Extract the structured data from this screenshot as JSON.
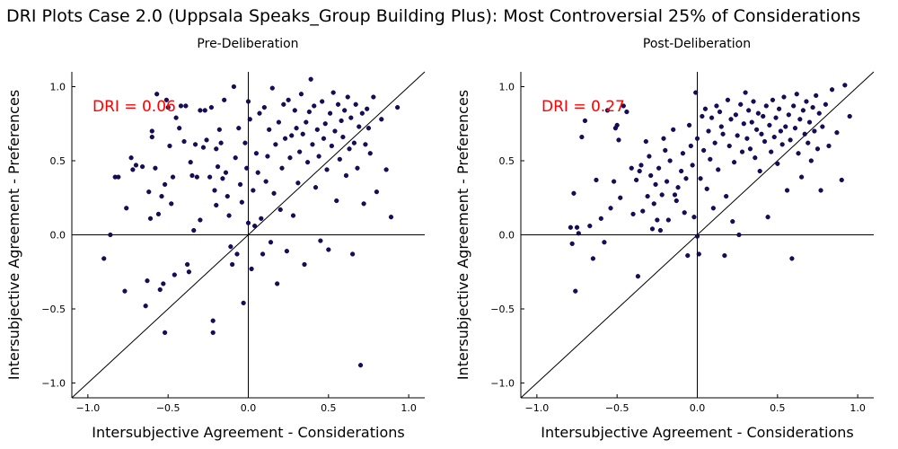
{
  "title": "DRI Plots Case 2.0 (Uppsala Speaks_Group Building Plus): Most Controversial 25% of Considerations",
  "colors": {
    "point": "#1a0a5c",
    "annotation": "#ff0000",
    "axis": "#000000"
  },
  "chart_data": [
    {
      "type": "scatter",
      "title": "Pre-Deliberation",
      "xlabel": "Intersubjective Agreement - Considerations",
      "ylabel": "Intersubjective Agreement - Preferences",
      "xlim": [
        -1.1,
        1.1
      ],
      "ylim": [
        -1.1,
        1.1
      ],
      "xticks": [
        "−1.0",
        "−0.5",
        "0.0",
        "0.5",
        "1.0"
      ],
      "yticks": [
        "−1.0",
        "−0.5",
        "0.0",
        "0.5",
        "1.0"
      ],
      "annotation": "DRI = 0.06",
      "points": [
        [
          -0.9,
          -0.16
        ],
        [
          -0.86,
          0.0
        ],
        [
          -0.83,
          0.39
        ],
        [
          -0.81,
          0.39
        ],
        [
          -0.77,
          -0.38
        ],
        [
          -0.76,
          0.18
        ],
        [
          -0.73,
          0.52
        ],
        [
          -0.72,
          0.44
        ],
        [
          -0.7,
          0.47
        ],
        [
          -0.66,
          0.46
        ],
        [
          -0.64,
          -0.48
        ],
        [
          -0.63,
          -0.31
        ],
        [
          -0.62,
          0.29
        ],
        [
          -0.61,
          0.11
        ],
        [
          -0.6,
          0.7
        ],
        [
          -0.6,
          0.66
        ],
        [
          -0.58,
          0.45
        ],
        [
          -0.57,
          0.95
        ],
        [
          -0.56,
          0.14
        ],
        [
          -0.55,
          -0.37
        ],
        [
          -0.54,
          0.26
        ],
        [
          -0.53,
          -0.33
        ],
        [
          -0.52,
          -0.66
        ],
        [
          -0.52,
          0.34
        ],
        [
          -0.51,
          0.91
        ],
        [
          -0.5,
          0.86
        ],
        [
          -0.49,
          0.6
        ],
        [
          -0.48,
          0.21
        ],
        [
          -0.47,
          0.39
        ],
        [
          -0.46,
          -0.27
        ],
        [
          -0.45,
          0.79
        ],
        [
          -0.43,
          0.72
        ],
        [
          -0.42,
          0.87
        ],
        [
          -0.4,
          0.63
        ],
        [
          -0.39,
          0.87
        ],
        [
          -0.38,
          -0.2
        ],
        [
          -0.37,
          -0.25
        ],
        [
          -0.36,
          0.49
        ],
        [
          -0.35,
          0.4
        ],
        [
          -0.34,
          0.03
        ],
        [
          -0.33,
          0.61
        ],
        [
          -0.32,
          0.39
        ],
        [
          -0.3,
          0.84
        ],
        [
          -0.3,
          0.1
        ],
        [
          -0.28,
          0.59
        ],
        [
          -0.27,
          0.84
        ],
        [
          -0.26,
          0.64
        ],
        [
          -0.24,
          0.39
        ],
        [
          -0.23,
          0.86
        ],
        [
          -0.22,
          -0.58
        ],
        [
          -0.22,
          -0.66
        ],
        [
          -0.21,
          0.3
        ],
        [
          -0.2,
          0.58
        ],
        [
          -0.2,
          0.2
        ],
        [
          -0.19,
          0.46
        ],
        [
          -0.18,
          0.71
        ],
        [
          -0.17,
          0.62
        ],
        [
          -0.16,
          0.38
        ],
        [
          -0.15,
          0.91
        ],
        [
          -0.14,
          0.42
        ],
        [
          -0.13,
          0.26
        ],
        [
          -0.12,
          0.13
        ],
        [
          -0.11,
          -0.08
        ],
        [
          -0.1,
          -0.2
        ],
        [
          -0.09,
          1.0
        ],
        [
          -0.08,
          0.52
        ],
        [
          -0.07,
          -0.13
        ],
        [
          -0.06,
          0.72
        ],
        [
          -0.05,
          0.34
        ],
        [
          -0.04,
          0.22
        ],
        [
          -0.03,
          -0.46
        ],
        [
          -0.02,
          0.62
        ],
        [
          -0.01,
          0.45
        ],
        [
          0.0,
          0.08
        ],
        [
          0.0,
          0.9
        ],
        [
          0.01,
          0.78
        ],
        [
          0.02,
          -0.23
        ],
        [
          0.03,
          0.3
        ],
        [
          0.04,
          0.06
        ],
        [
          0.05,
          0.55
        ],
        [
          0.06,
          0.42
        ],
        [
          0.07,
          0.82
        ],
        [
          0.08,
          0.11
        ],
        [
          0.09,
          -0.13
        ],
        [
          0.1,
          0.86
        ],
        [
          0.11,
          0.36
        ],
        [
          0.12,
          0.53
        ],
        [
          0.13,
          0.71
        ],
        [
          0.14,
          -0.05
        ],
        [
          0.15,
          0.99
        ],
        [
          0.16,
          0.28
        ],
        [
          0.17,
          0.61
        ],
        [
          0.18,
          -0.33
        ],
        [
          0.19,
          0.76
        ],
        [
          0.2,
          0.17
        ],
        [
          0.21,
          0.45
        ],
        [
          0.22,
          0.88
        ],
        [
          0.23,
          0.65
        ],
        [
          0.24,
          -0.11
        ],
        [
          0.25,
          0.91
        ],
        [
          0.26,
          0.52
        ],
        [
          0.27,
          0.67
        ],
        [
          0.28,
          0.13
        ],
        [
          0.29,
          0.84
        ],
        [
          0.3,
          0.72
        ],
        [
          0.31,
          0.35
        ],
        [
          0.32,
          0.56
        ],
        [
          0.33,
          0.95
        ],
        [
          0.34,
          0.68
        ],
        [
          0.35,
          -0.2
        ],
        [
          0.36,
          0.76
        ],
        [
          0.37,
          0.49
        ],
        [
          0.38,
          0.83
        ],
        [
          0.39,
          1.05
        ],
        [
          0.4,
          0.61
        ],
        [
          0.41,
          0.87
        ],
        [
          0.42,
          0.32
        ],
        [
          0.43,
          0.71
        ],
        [
          0.44,
          0.53
        ],
        [
          0.45,
          -0.04
        ],
        [
          0.46,
          0.9
        ],
        [
          0.47,
          0.65
        ],
        [
          0.48,
          0.75
        ],
        [
          0.49,
          0.44
        ],
        [
          0.5,
          -0.1
        ],
        [
          0.51,
          0.82
        ],
        [
          0.52,
          0.6
        ],
        [
          0.53,
          0.96
        ],
        [
          0.54,
          0.7
        ],
        [
          0.55,
          0.23
        ],
        [
          0.56,
          0.88
        ],
        [
          0.57,
          0.51
        ],
        [
          0.58,
          0.77
        ],
        [
          0.59,
          0.66
        ],
        [
          0.6,
          0.84
        ],
        [
          0.61,
          0.4
        ],
        [
          0.62,
          0.93
        ],
        [
          0.63,
          0.58
        ],
        [
          0.64,
          0.79
        ],
        [
          0.65,
          -0.13
        ],
        [
          0.66,
          0.62
        ],
        [
          0.67,
          0.88
        ],
        [
          0.68,
          0.45
        ],
        [
          0.69,
          0.73
        ],
        [
          0.7,
          -0.88
        ],
        [
          0.71,
          0.82
        ],
        [
          0.72,
          0.21
        ],
        [
          0.73,
          0.61
        ],
        [
          0.74,
          0.85
        ],
        [
          0.75,
          0.72
        ],
        [
          0.76,
          0.55
        ],
        [
          0.78,
          0.93
        ],
        [
          0.8,
          0.29
        ],
        [
          0.83,
          0.78
        ],
        [
          0.86,
          0.44
        ],
        [
          0.89,
          0.12
        ],
        [
          0.93,
          0.86
        ]
      ]
    },
    {
      "type": "scatter",
      "title": "Post-Deliberation",
      "xlabel": "Intersubjective Agreement - Considerations",
      "ylabel": "Intersubjective Agreement - Preferences",
      "xlim": [
        -1.1,
        1.1
      ],
      "ylim": [
        -1.1,
        1.1
      ],
      "xticks": [
        "−1.0",
        "−0.5",
        "0.0",
        "0.5",
        "1.0"
      ],
      "yticks": [
        "−1.0",
        "−0.5",
        "0.0",
        "0.5",
        "1.0"
      ],
      "annotation": "DRI = 0.27",
      "points": [
        [
          -0.79,
          0.05
        ],
        [
          -0.78,
          -0.06
        ],
        [
          -0.77,
          0.28
        ],
        [
          -0.76,
          -0.38
        ],
        [
          -0.75,
          0.05
        ],
        [
          -0.74,
          0.01
        ],
        [
          -0.72,
          0.66
        ],
        [
          -0.7,
          0.77
        ],
        [
          -0.67,
          0.06
        ],
        [
          -0.65,
          -0.16
        ],
        [
          -0.63,
          0.37
        ],
        [
          -0.6,
          0.11
        ],
        [
          -0.58,
          -0.05
        ],
        [
          -0.56,
          0.84
        ],
        [
          -0.54,
          0.18
        ],
        [
          -0.52,
          0.36
        ],
        [
          -0.51,
          0.72
        ],
        [
          -0.5,
          0.74
        ],
        [
          -0.49,
          0.64
        ],
        [
          -0.48,
          0.25
        ],
        [
          -0.46,
          0.87
        ],
        [
          -0.44,
          0.83
        ],
        [
          -0.41,
          0.45
        ],
        [
          -0.4,
          0.14
        ],
        [
          -0.38,
          0.37
        ],
        [
          -0.37,
          -0.28
        ],
        [
          -0.36,
          0.43
        ],
        [
          -0.35,
          0.47
        ],
        [
          -0.34,
          0.16
        ],
        [
          -0.32,
          0.63
        ],
        [
          -0.31,
          0.26
        ],
        [
          -0.3,
          0.53
        ],
        [
          -0.29,
          0.4
        ],
        [
          -0.28,
          0.04
        ],
        [
          -0.27,
          0.21
        ],
        [
          -0.26,
          0.34
        ],
        [
          -0.25,
          0.1
        ],
        [
          -0.24,
          0.45
        ],
        [
          -0.23,
          0.03
        ],
        [
          -0.22,
          0.27
        ],
        [
          -0.21,
          0.65
        ],
        [
          -0.2,
          0.57
        ],
        [
          -0.19,
          0.36
        ],
        [
          -0.18,
          0.1
        ],
        [
          -0.17,
          0.5
        ],
        [
          -0.15,
          0.71
        ],
        [
          -0.14,
          0.27
        ],
        [
          -0.13,
          0.23
        ],
        [
          -0.12,
          0.32
        ],
        [
          -0.1,
          0.43
        ],
        [
          -0.09,
          0.55
        ],
        [
          -0.08,
          0.15
        ],
        [
          -0.07,
          0.38
        ],
        [
          -0.06,
          -0.14
        ],
        [
          -0.05,
          0.74
        ],
        [
          -0.04,
          0.6
        ],
        [
          -0.03,
          0.47
        ],
        [
          -0.02,
          0.12
        ],
        [
          -0.01,
          0.96
        ],
        [
          0.0,
          0.65
        ],
        [
          0.0,
          -0.01
        ],
        [
          0.01,
          -0.13
        ],
        [
          0.02,
          0.38
        ],
        [
          0.03,
          0.8
        ],
        [
          0.04,
          0.57
        ],
        [
          0.05,
          0.85
        ],
        [
          0.06,
          0.31
        ],
        [
          0.07,
          0.7
        ],
        [
          0.08,
          0.51
        ],
        [
          0.09,
          0.79
        ],
        [
          0.1,
          0.18
        ],
        [
          0.11,
          0.62
        ],
        [
          0.12,
          0.87
        ],
        [
          0.13,
          0.44
        ],
        [
          0.14,
          0.83
        ],
        [
          0.15,
          0.73
        ],
        [
          0.16,
          0.68
        ],
        [
          0.17,
          -0.14
        ],
        [
          0.18,
          0.26
        ],
        [
          0.19,
          0.91
        ],
        [
          0.2,
          0.6
        ],
        [
          0.21,
          0.78
        ],
        [
          0.22,
          0.09
        ],
        [
          0.23,
          0.49
        ],
        [
          0.24,
          0.81
        ],
        [
          0.25,
          0.67
        ],
        [
          0.26,
          0.0
        ],
        [
          0.27,
          0.88
        ],
        [
          0.28,
          0.56
        ],
        [
          0.29,
          0.75
        ],
        [
          0.3,
          0.96
        ],
        [
          0.31,
          0.65
        ],
        [
          0.32,
          0.84
        ],
        [
          0.33,
          0.58
        ],
        [
          0.34,
          0.76
        ],
        [
          0.35,
          0.9
        ],
        [
          0.36,
          0.52
        ],
        [
          0.37,
          0.71
        ],
        [
          0.38,
          0.82
        ],
        [
          0.39,
          0.43
        ],
        [
          0.4,
          0.68
        ],
        [
          0.41,
          0.8
        ],
        [
          0.42,
          0.63
        ],
        [
          0.43,
          0.87
        ],
        [
          0.44,
          0.12
        ],
        [
          0.45,
          0.74
        ],
        [
          0.46,
          0.56
        ],
        [
          0.47,
          0.91
        ],
        [
          0.48,
          0.66
        ],
        [
          0.49,
          0.79
        ],
        [
          0.5,
          0.48
        ],
        [
          0.51,
          0.85
        ],
        [
          0.52,
          0.7
        ],
        [
          0.53,
          0.61
        ],
        [
          0.54,
          0.93
        ],
        [
          0.55,
          0.73
        ],
        [
          0.56,
          0.3
        ],
        [
          0.57,
          0.81
        ],
        [
          0.58,
          0.64
        ],
        [
          0.59,
          -0.16
        ],
        [
          0.6,
          0.87
        ],
        [
          0.61,
          0.72
        ],
        [
          0.62,
          0.95
        ],
        [
          0.63,
          0.55
        ],
        [
          0.64,
          0.78
        ],
        [
          0.65,
          0.39
        ],
        [
          0.66,
          0.84
        ],
        [
          0.67,
          0.68
        ],
        [
          0.68,
          0.9
        ],
        [
          0.69,
          0.62
        ],
        [
          0.7,
          0.76
        ],
        [
          0.71,
          0.5
        ],
        [
          0.72,
          0.86
        ],
        [
          0.73,
          0.7
        ],
        [
          0.74,
          0.94
        ],
        [
          0.75,
          0.58
        ],
        [
          0.76,
          0.82
        ],
        [
          0.77,
          0.3
        ],
        [
          0.78,
          0.73
        ],
        [
          0.8,
          0.88
        ],
        [
          0.82,
          0.6
        ],
        [
          0.84,
          0.98
        ],
        [
          0.87,
          0.69
        ],
        [
          0.9,
          0.37
        ],
        [
          0.92,
          1.01
        ],
        [
          0.95,
          0.8
        ]
      ]
    }
  ]
}
